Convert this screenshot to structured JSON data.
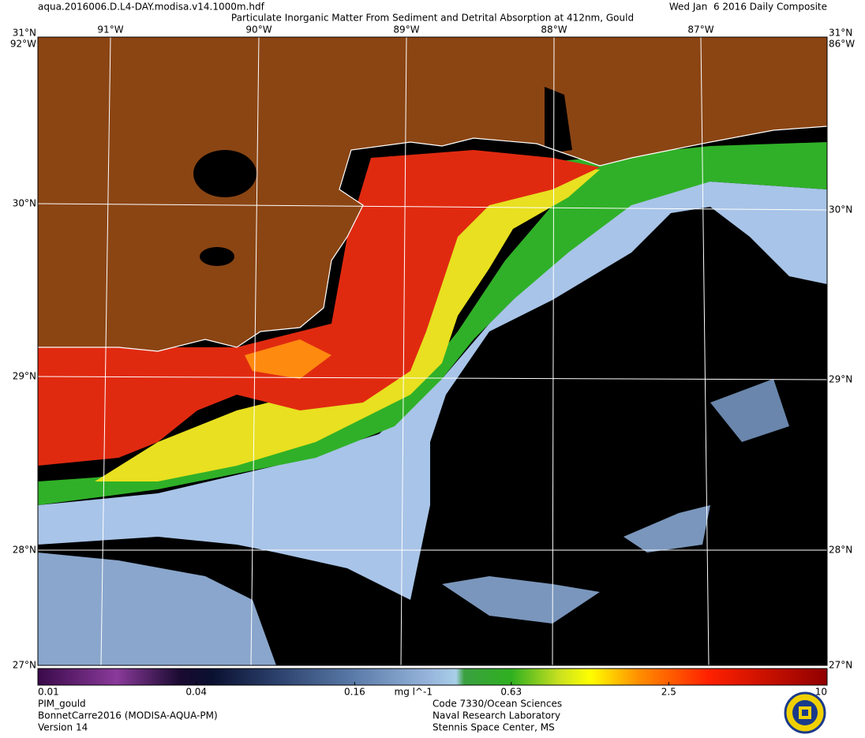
{
  "header": {
    "file": "aqua.2016006.D.L4-DAY.modisa.v14.1000m.hdf",
    "title": "Particulate Inorganic Matter From Sediment and Detrital Absorption at 412nm, Gould",
    "date": "Wed Jan  6 2016 Daily Composite"
  },
  "map": {
    "latitude_labels": [
      "31°N",
      "30°N",
      "29°N",
      "28°N"
    ],
    "longitude_labels": [
      "91°W",
      "90°W",
      "89°W",
      "88°W",
      "87°W"
    ],
    "corner_labels": [
      "92°W",
      "86°W",
      "27°N",
      "27°N"
    ]
  },
  "colorbar": {
    "scale": "log",
    "lim": [
      0.01,
      10
    ],
    "ticks": [
      0.01,
      0.04,
      0.16,
      0.63,
      2.5,
      10
    ],
    "unit": "mg l^-1"
  },
  "footer": {
    "left": [
      "PIM_gould",
      "BonnetCarre2016 (MODISA-AQUA-PM)",
      "Version 14"
    ],
    "center": [
      "Code 7330/Ocean Sciences",
      "Naval Research Laboratory",
      "Stennis Space Center, MS"
    ]
  }
}
